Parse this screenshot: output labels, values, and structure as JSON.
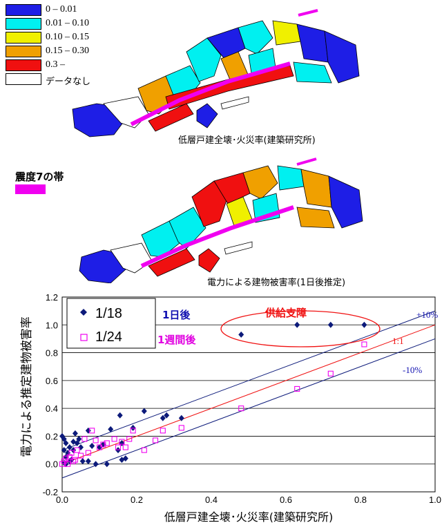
{
  "legend": {
    "items": [
      {
        "label": "0 – 0.01",
        "color": "#1e1ee6"
      },
      {
        "label": "0.01 – 0.10",
        "color": "#00f0f0"
      },
      {
        "label": "0.10 – 0.15",
        "color": "#f0f000"
      },
      {
        "label": "0.15 – 0.30",
        "color": "#f0a000"
      },
      {
        "label": "0.3 –",
        "color": "#f01010"
      },
      {
        "label": "データなし",
        "color": "#ffffff"
      }
    ]
  },
  "maps": {
    "top_caption": "低層戸建全壊･火災率(建築研究所)",
    "bottom_caption": "電力による建物被害率(1日後推定)",
    "zone_label": "震度7の帯",
    "zone_color": "#f000f0"
  },
  "chart_data": {
    "type": "scatter",
    "xlabel": "低層戸建全壊･火災率(建築研究所)",
    "ylabel": "電力による推定建物被害率",
    "xlim": [
      0,
      1.0
    ],
    "ylim": [
      -0.2,
      1.2
    ],
    "x_ticks": [
      "0.0",
      "0.2",
      "0.4",
      "0.6",
      "0.8",
      "1.0"
    ],
    "y_ticks": [
      "-0.2",
      "0.0",
      "0.2",
      "0.4",
      "0.6",
      "0.8",
      "1.0",
      "1.2"
    ],
    "grid": true,
    "legend_position": "top-left",
    "series": [
      {
        "name": "1/18",
        "marker": "diamond",
        "color": "#0c1a7a",
        "points": [
          [
            0,
            0.2
          ],
          [
            0.005,
            0.18
          ],
          [
            0.01,
            0.15
          ],
          [
            0.02,
            0.12
          ],
          [
            0.005,
            0.1
          ],
          [
            0.015,
            0.08
          ],
          [
            0.01,
            0.05
          ],
          [
            0.025,
            0.03
          ],
          [
            0.03,
            0.1
          ],
          [
            0.03,
            0.16
          ],
          [
            0.035,
            0.22
          ],
          [
            0.04,
            0.15
          ],
          [
            0.045,
            0.18
          ],
          [
            0.05,
            0.12
          ],
          [
            0.055,
            0.02
          ],
          [
            0.07,
            0.02
          ],
          [
            0.07,
            0.24
          ],
          [
            0.08,
            0.13
          ],
          [
            0.09,
            0.0
          ],
          [
            0.1,
            0.12
          ],
          [
            0.11,
            0.14
          ],
          [
            0.12,
            0.0
          ],
          [
            0.13,
            0.25
          ],
          [
            0.15,
            0.1
          ],
          [
            0.155,
            0.35
          ],
          [
            0.16,
            0.15
          ],
          [
            0.16,
            0.03
          ],
          [
            0.17,
            0.04
          ],
          [
            0.19,
            0.26
          ],
          [
            0.22,
            0.38
          ],
          [
            0.27,
            0.33
          ],
          [
            0.28,
            0.35
          ],
          [
            0.32,
            0.33
          ],
          [
            0.48,
            0.93
          ],
          [
            0.63,
            1.0
          ],
          [
            0.72,
            1.0
          ],
          [
            0.81,
            1.0
          ],
          [
            0.005,
            0.01
          ],
          [
            0.01,
            0.0
          ],
          [
            0.02,
            0.02
          ]
        ]
      },
      {
        "name": "1/24",
        "marker": "square",
        "color": "#f000f0",
        "points": [
          [
            0,
            0.0
          ],
          [
            0.005,
            0.02
          ],
          [
            0.01,
            0.04
          ],
          [
            0.015,
            0.0
          ],
          [
            0.02,
            0.05
          ],
          [
            0.025,
            0.08
          ],
          [
            0.03,
            0.02
          ],
          [
            0.035,
            0.03
          ],
          [
            0.04,
            0.1
          ],
          [
            0.05,
            0.06
          ],
          [
            0.06,
            0.18
          ],
          [
            0.07,
            0.08
          ],
          [
            0.08,
            0.24
          ],
          [
            0.09,
            0.17
          ],
          [
            0.1,
            0.12
          ],
          [
            0.11,
            0.14
          ],
          [
            0.12,
            0.15
          ],
          [
            0.14,
            0.18
          ],
          [
            0.15,
            0.12
          ],
          [
            0.16,
            0.16
          ],
          [
            0.17,
            0.12
          ],
          [
            0.18,
            0.18
          ],
          [
            0.19,
            0.24
          ],
          [
            0.22,
            0.1
          ],
          [
            0.25,
            0.17
          ],
          [
            0.27,
            0.24
          ],
          [
            0.32,
            0.26
          ],
          [
            0.48,
            0.4
          ],
          [
            0.63,
            0.54
          ],
          [
            0.72,
            0.65
          ],
          [
            0.81,
            0.86
          ]
        ]
      }
    ],
    "reference_lines": [
      {
        "label": "+10%",
        "color": "#0c1a7a",
        "offset": 0.1
      },
      {
        "label": "1:1",
        "color": "#f01010",
        "offset": 0.0
      },
      {
        "label": "-10%",
        "color": "#0c1a7a",
        "offset": -0.1
      }
    ],
    "annotations": {
      "day1": "1日後",
      "week1": "1週間後",
      "supply": "供給支障"
    }
  }
}
